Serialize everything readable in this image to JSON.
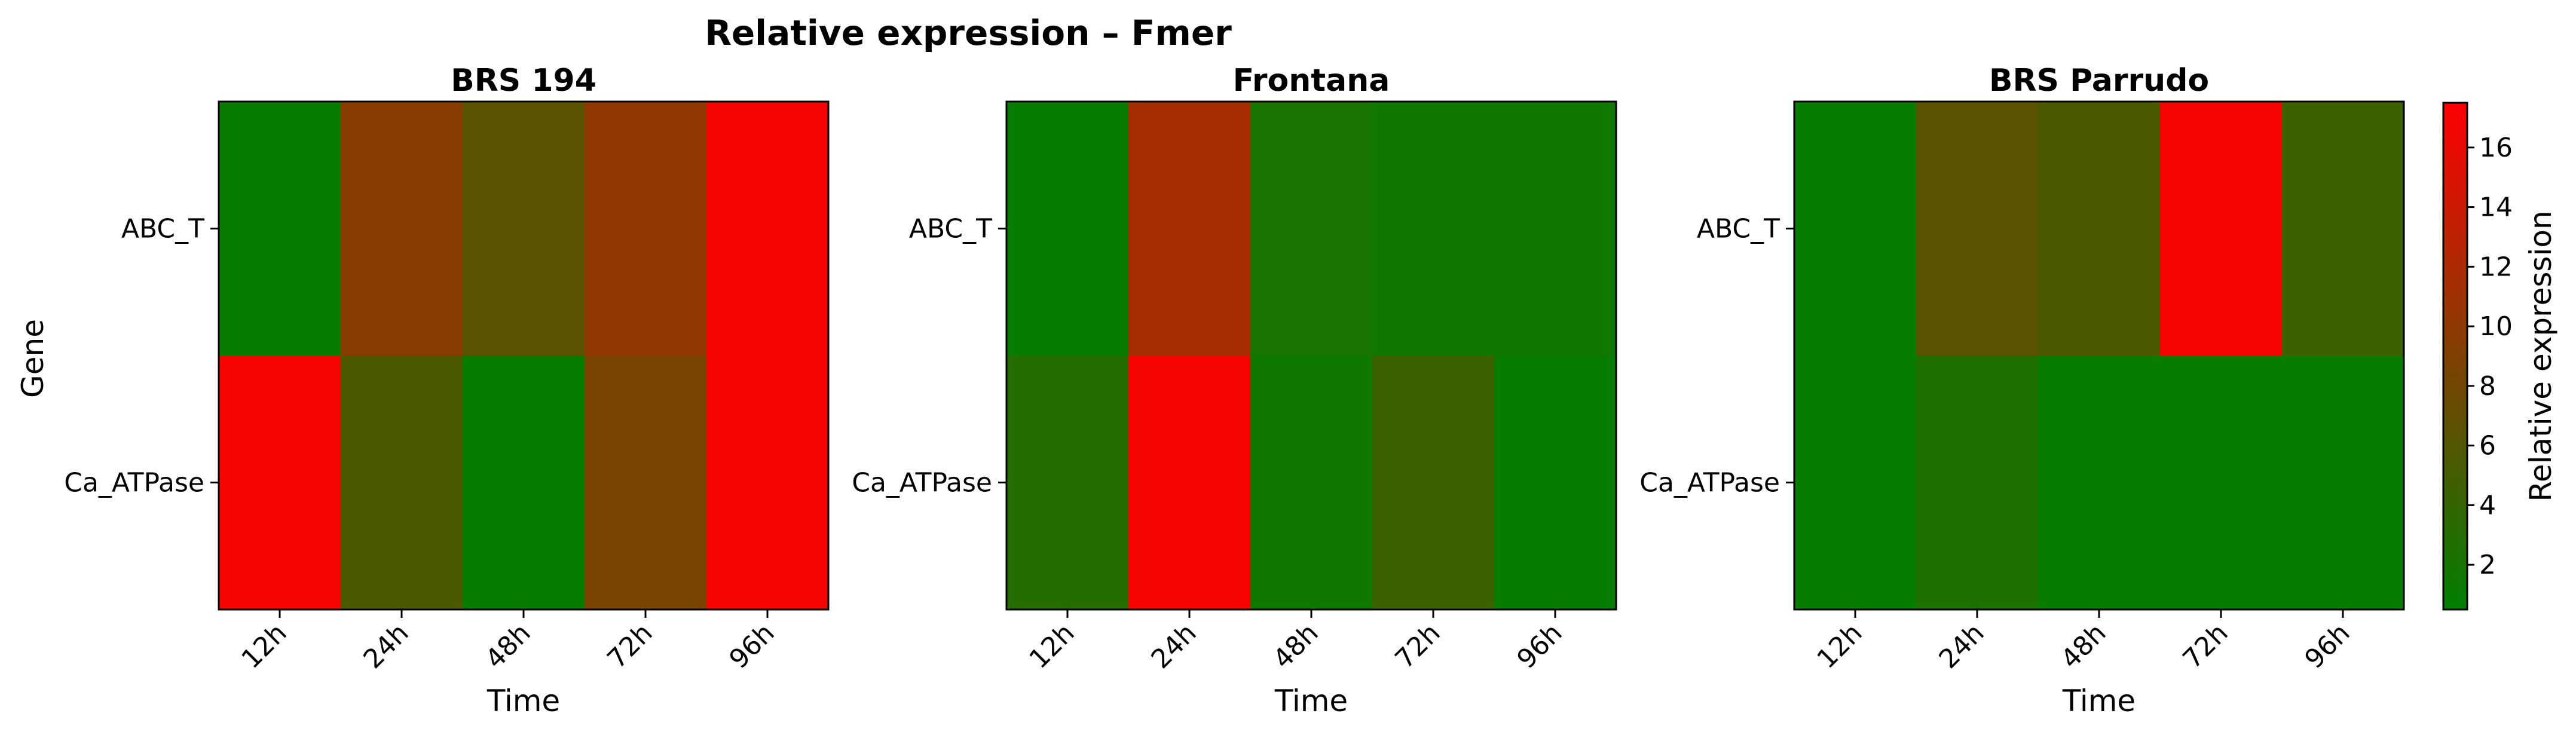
{
  "chart_data": {
    "type": "heatmap",
    "title": "Relative expression – Fmer",
    "xlabel": "Time",
    "ylabel": "Gene",
    "x_categories": [
      "12h",
      "24h",
      "48h",
      "72h",
      "96h"
    ],
    "y_categories": [
      "ABC_T",
      "Ca_ATPase"
    ],
    "colorbar": {
      "label": "Relative expression",
      "range": [
        0.5,
        17.5
      ],
      "ticks": [
        "2",
        "4",
        "6",
        "8",
        "10",
        "12",
        "14",
        "16"
      ],
      "colors": [
        "#008000",
        "#ff0000"
      ]
    },
    "panels": [
      {
        "title": "BRS 194",
        "values": [
          [
            1.0,
            9.5,
            6.5,
            10.0,
            17.0
          ],
          [
            17.0,
            5.5,
            1.0,
            8.5,
            17.0
          ]
        ]
      },
      {
        "title": "Frontana",
        "values": [
          [
            1.0,
            11.5,
            2.0,
            1.5,
            1.5
          ],
          [
            3.0,
            17.0,
            1.5,
            4.5,
            1.0
          ]
        ]
      },
      {
        "title": "BRS Parrudo",
        "values": [
          [
            1.0,
            6.5,
            5.5,
            17.0,
            4.5
          ],
          [
            1.0,
            2.5,
            1.0,
            1.0,
            1.0
          ]
        ]
      }
    ]
  }
}
